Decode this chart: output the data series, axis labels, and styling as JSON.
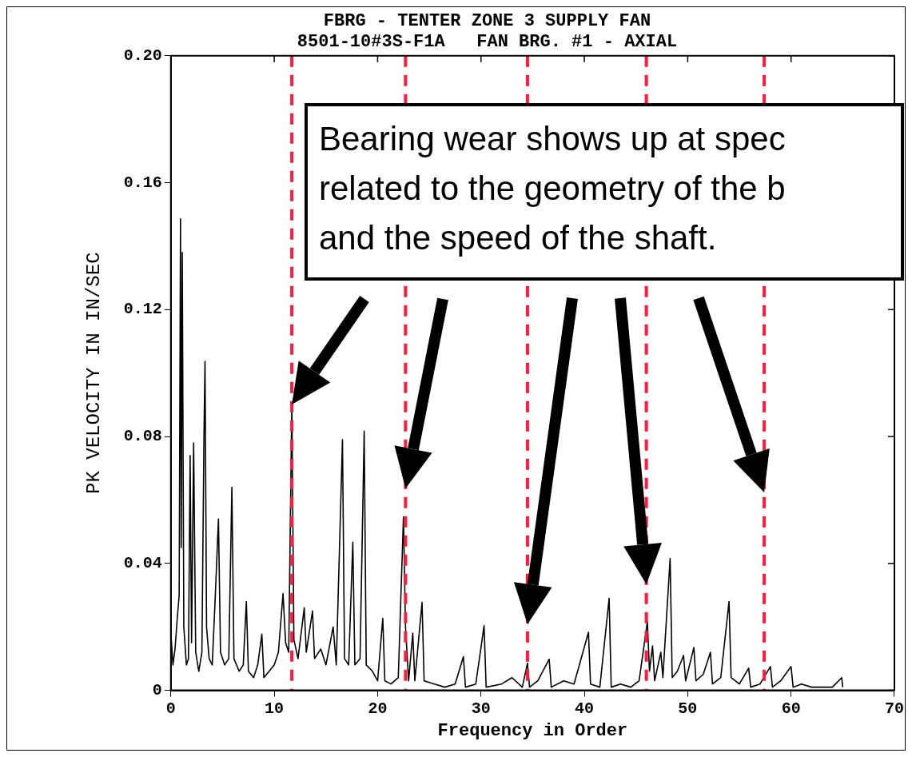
{
  "chart_data": {
    "type": "line",
    "title": "FBRG - TENTER ZONE 3 SUPPLY FAN",
    "subtitle": "8501-10#3S-F1A   FAN BRG. #1 - AXIAL",
    "xlabel": "Frequency in Order",
    "ylabel": "PK VELOCITY IN IN/SEC",
    "xlim": [
      0,
      70
    ],
    "xticks": [
      0,
      10,
      20,
      30,
      40,
      50,
      60,
      70
    ],
    "ylim": [
      0,
      0.2
    ],
    "yticks": [
      0,
      {
        "value": 0.04,
        "label": "0.04"
      },
      {
        "value": 0.08,
        "label": "0.08"
      },
      {
        "value": 0.12,
        "label": "0.12"
      },
      {
        "value": 0.16,
        "label": "0.16"
      },
      {
        "value": 0.2,
        "label": "0.20"
      }
    ],
    "grid": false,
    "legend": false,
    "marker": "none",
    "line_style": "solid",
    "series": [
      {
        "color": "#000000",
        "x": [
          0,
          0.2,
          0.4,
          0.6,
          0.8,
          0.93,
          1.0,
          1.1,
          1.25,
          1.5,
          1.7,
          1.86,
          2.0,
          2.2,
          2.4,
          2.7,
          3.0,
          3.2,
          3.3,
          3.45,
          3.7,
          4.0,
          4.3,
          4.6,
          4.8,
          5.2,
          5.6,
          5.9,
          6.1,
          6.6,
          7.0,
          7.3,
          7.5,
          8.0,
          8.4,
          8.8,
          9.0,
          9.5,
          10.0,
          10.4,
          10.85,
          11.1,
          11.4,
          11.7,
          11.9,
          12.3,
          12.9,
          13.1,
          13.7,
          13.9,
          14.5,
          15.0,
          15.7,
          16.0,
          16.6,
          16.8,
          17.2,
          17.6,
          17.8,
          18.3,
          18.7,
          18.9,
          19.5,
          20.0,
          20.5,
          20.7,
          21.3,
          22.0,
          22.5,
          22.7,
          23.0,
          23.4,
          23.6,
          24.3,
          24.5,
          25.5,
          26.5,
          27.5,
          28.3,
          28.5,
          29.5,
          30.3,
          30.5,
          32.0,
          33.0,
          34.0,
          34.5,
          34.7,
          35.5,
          36.6,
          36.8,
          38.0,
          39.0,
          40.4,
          40.6,
          41.5,
          42.4,
          42.6,
          43.5,
          44.5,
          45.3,
          46.1,
          46.3,
          46.6,
          46.8,
          47.4,
          47.6,
          48.3,
          48.5,
          49.0,
          49.6,
          49.8,
          50.6,
          50.8,
          51.5,
          52.2,
          52.4,
          53.2,
          54.0,
          54.2,
          55.0,
          55.9,
          56.1,
          57.0,
          58.0,
          58.2,
          59.0,
          60.0,
          60.2,
          61.0,
          62.0,
          63.0,
          64.0,
          64.9,
          65.0
        ],
        "values": [
          0.018,
          0.008,
          0.013,
          0.022,
          0.03,
          0.1486,
          0.045,
          0.138,
          0.02,
          0.008,
          0.01,
          0.074,
          0.015,
          0.078,
          0.012,
          0.006,
          0.012,
          0.08,
          0.1037,
          0.02,
          0.01,
          0.008,
          0.03,
          0.054,
          0.012,
          0.008,
          0.01,
          0.064,
          0.01,
          0.006,
          0.008,
          0.028,
          0.006,
          0.004,
          0.008,
          0.0177,
          0.004,
          0.006,
          0.008,
          0.012,
          0.0305,
          0.015,
          0.012,
          0.09,
          0.016,
          0.01,
          0.026,
          0.012,
          0.025,
          0.01,
          0.013,
          0.008,
          0.02,
          0.008,
          0.079,
          0.01,
          0.008,
          0.0467,
          0.008,
          0.01,
          0.0817,
          0.008,
          0.006,
          0.003,
          0.0227,
          0.003,
          0.002,
          0.004,
          0.0547,
          0.02,
          0.003,
          0.018,
          0.003,
          0.0277,
          0.003,
          0.002,
          0.001,
          0.002,
          0.0106,
          0.001,
          0.002,
          0.0204,
          0.001,
          0.002,
          0.004,
          0.001,
          0.0086,
          0.001,
          0.003,
          0.0098,
          0.001,
          0.003,
          0.002,
          0.0183,
          0.002,
          0.001,
          0.029,
          0.001,
          0.002,
          0.001,
          0.003,
          0.0217,
          0.006,
          0.014,
          0.003,
          0.012,
          0.004,
          0.0416,
          0.004,
          0.006,
          0.011,
          0.003,
          0.0135,
          0.003,
          0.005,
          0.012,
          0.002,
          0.004,
          0.028,
          0.004,
          0.002,
          0.007,
          0.001,
          0.002,
          0.0075,
          0.001,
          0.003,
          0.0075,
          0.001,
          0.002,
          0.001,
          0.001,
          0.001,
          0.004,
          0.001
        ]
      }
    ],
    "ref_lines": [
      {
        "axis": "x",
        "value": 11.7,
        "color": "#ff1a40",
        "line_style": "dashed"
      },
      {
        "axis": "x",
        "value": 22.7,
        "color": "#ff1a40",
        "line_style": "dashed"
      },
      {
        "axis": "x",
        "value": 34.5,
        "color": "#ff1a40",
        "line_style": "dashed"
      },
      {
        "axis": "x",
        "value": 46.0,
        "color": "#ff1a40",
        "line_style": "dashed"
      },
      {
        "axis": "x",
        "value": 57.4,
        "color": "#ff1a40",
        "line_style": "dashed"
      }
    ],
    "annotations": [
      "Bearing wear shows up at spec\nrelated to the geometry of the b\nand the speed of the shaft."
    ]
  }
}
